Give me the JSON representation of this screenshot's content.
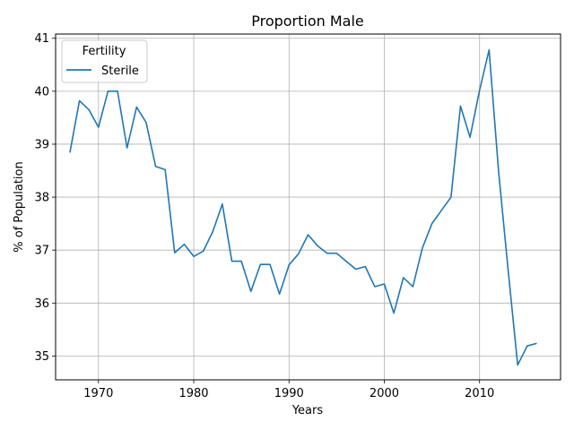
{
  "chart_data": {
    "type": "line",
    "title": "Proportion Male",
    "xlabel": "Years",
    "ylabel": "% of Population",
    "xlim": [
      1965.5,
      2018.5
    ],
    "ylim": [
      34.55,
      41.08
    ],
    "xticks": [
      1970,
      1980,
      1990,
      2000,
      2010
    ],
    "yticks": [
      35,
      36,
      37,
      38,
      39,
      40,
      41
    ],
    "grid": true,
    "legend": {
      "title": "Fertility",
      "position": "top-left"
    },
    "colors": {
      "series": "#1f77b4",
      "grid": "#b0b0b0",
      "axis": "#000000"
    },
    "series": [
      {
        "name": "Sterile",
        "x": [
          1967,
          1968,
          1969,
          1970,
          1971,
          1972,
          1973,
          1974,
          1975,
          1976,
          1977,
          1978,
          1979,
          1980,
          1981,
          1982,
          1983,
          1984,
          1985,
          1986,
          1987,
          1988,
          1989,
          1990,
          1991,
          1992,
          1993,
          1994,
          1995,
          1996,
          1997,
          1998,
          1999,
          2000,
          2001,
          2002,
          2003,
          2004,
          2005,
          2006,
          2007,
          2008,
          2009,
          2010,
          2011,
          2012,
          2013,
          2014,
          2015,
          2016
        ],
        "y": [
          38.84,
          39.82,
          39.65,
          39.32,
          40.0,
          40.0,
          38.93,
          39.7,
          39.41,
          38.58,
          38.52,
          36.95,
          37.11,
          36.88,
          36.98,
          37.35,
          37.87,
          36.79,
          36.79,
          36.22,
          36.73,
          36.73,
          36.17,
          36.72,
          36.93,
          37.29,
          37.08,
          36.94,
          36.94,
          36.79,
          36.64,
          36.69,
          36.31,
          36.36,
          35.81,
          36.48,
          36.31,
          37.04,
          37.5,
          37.75,
          38.0,
          39.72,
          39.13,
          40.02,
          40.78,
          38.48,
          36.62,
          34.83,
          35.19,
          35.24
        ]
      }
    ]
  }
}
